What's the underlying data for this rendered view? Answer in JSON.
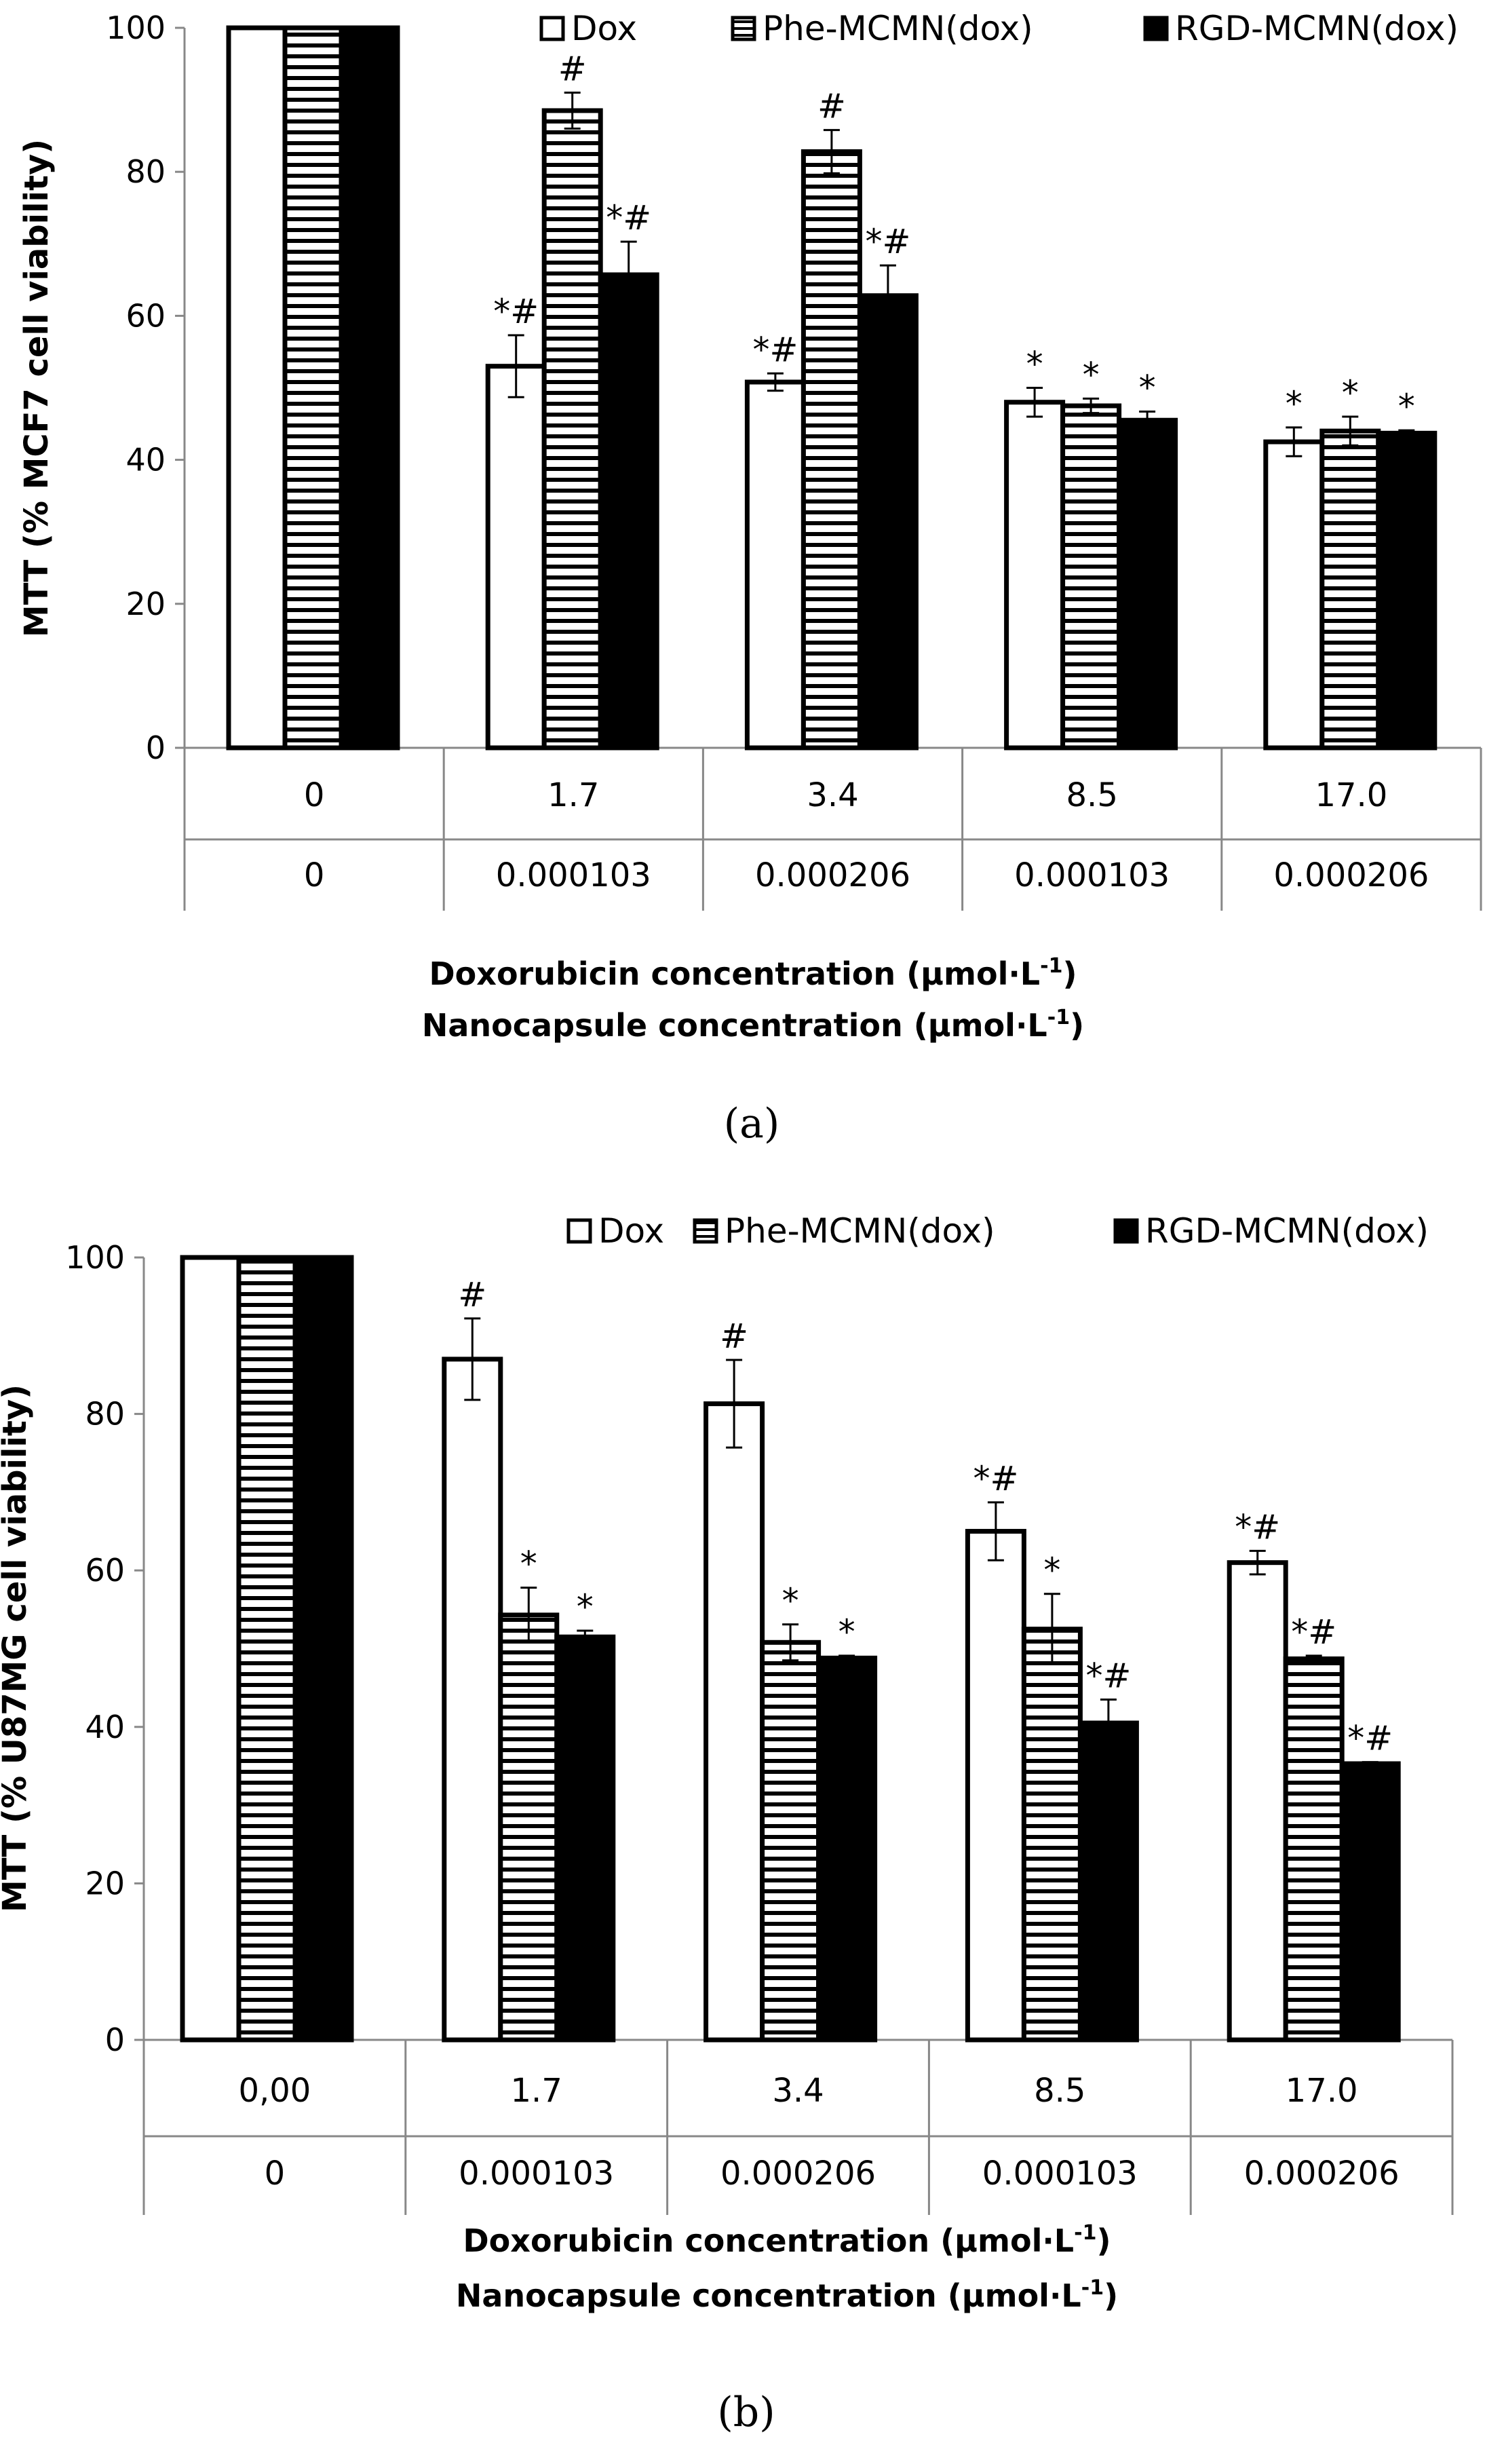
{
  "chart_data": [
    {
      "type": "bar",
      "panel_label": "(a)",
      "panel_letter": "a",
      "ylabel": "MTT (% MCF7 cell viability)",
      "ylim": [
        0,
        100
      ],
      "yticks": [
        0,
        20,
        40,
        60,
        80,
        100
      ],
      "legend_position": "top",
      "x_row1": [
        "0",
        "1.7",
        "3.4",
        "8.5",
        "17.0"
      ],
      "x_row2": [
        "0",
        "0.000103",
        "0.000206",
        "0.000103",
        "0.000206"
      ],
      "xlabel_line1": "Doxorubicin concentration (μmol·L",
      "xlabel_line2": "Nanocapsule concentration (μmol·L",
      "xlabel_sup": "-1",
      "xlabel_close": ")",
      "series": [
        {
          "name": "Dox",
          "style": "open",
          "values": [
            100,
            53,
            50.8,
            48,
            42.5
          ],
          "errors": [
            0,
            4.3,
            1.2,
            2,
            2
          ],
          "annotations": [
            "",
            "*#",
            "*#",
            "*",
            "*"
          ]
        },
        {
          "name": "Phe-MCMN(dox)",
          "style": "hatched",
          "values": [
            100,
            88.5,
            82.8,
            47.5,
            44
          ],
          "errors": [
            0,
            2.5,
            3,
            1,
            2
          ],
          "annotations": [
            "",
            "#",
            "#",
            "*",
            "*"
          ]
        },
        {
          "name": "RGD-MCMN(dox)",
          "style": "solid",
          "values": [
            100,
            65.7,
            62.8,
            45.5,
            43.7
          ],
          "errors": [
            0,
            4.6,
            4.2,
            1.2,
            0.4
          ],
          "annotations": [
            "",
            "*#",
            "*#",
            "*",
            "*"
          ]
        }
      ],
      "colors": {
        "fill": "#000000",
        "open": "#ffffff",
        "stroke": "#000000",
        "axis": "#888888"
      }
    },
    {
      "type": "bar",
      "panel_label": "(b)",
      "panel_letter": "b",
      "ylabel": "MTT (% U87MG cell viability)",
      "ylim": [
        0,
        100
      ],
      "yticks": [
        0,
        20,
        40,
        60,
        80,
        100
      ],
      "legend_position": "top",
      "x_row1": [
        "0,00",
        "1.7",
        "3.4",
        "8.5",
        "17.0"
      ],
      "x_row2": [
        "0",
        "0.000103",
        "0.000206",
        "0.000103",
        "0.000206"
      ],
      "xlabel_line1": "Doxorubicin concentration (μmol·L",
      "xlabel_line2": "Nanocapsule concentration (μmol·L",
      "xlabel_sup": "-1",
      "xlabel_close": ")",
      "series": [
        {
          "name": "Dox",
          "style": "open",
          "values": [
            100,
            87,
            81.3,
            65,
            61
          ],
          "errors": [
            0,
            5.2,
            5.6,
            3.7,
            1.5
          ],
          "annotations": [
            "",
            "#",
            "#",
            "*#",
            "*#"
          ]
        },
        {
          "name": "Phe-MCMN(dox)",
          "style": "hatched",
          "values": [
            100,
            54.3,
            50.8,
            52.5,
            48.7
          ],
          "errors": [
            0,
            3.5,
            2.3,
            4.5,
            0.4
          ],
          "annotations": [
            "",
            "*",
            "*",
            "*",
            "*#"
          ]
        },
        {
          "name": "RGD-MCMN(dox)",
          "style": "solid",
          "values": [
            100,
            51.5,
            48.8,
            40.5,
            35.3
          ],
          "errors": [
            0,
            0.8,
            0.3,
            3,
            0.2
          ],
          "annotations": [
            "",
            "*",
            "*",
            "*#",
            "*#"
          ]
        }
      ],
      "colors": {
        "fill": "#000000",
        "open": "#ffffff",
        "stroke": "#000000",
        "axis": "#888888"
      }
    }
  ]
}
